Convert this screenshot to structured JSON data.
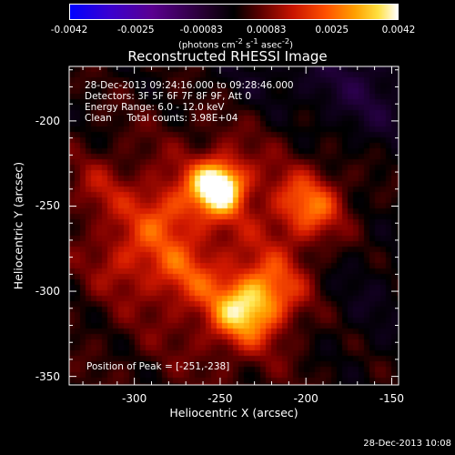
{
  "colorbar": {
    "ticks": [
      "-0.0042",
      "-0.0025",
      "-0.00083",
      "0.00083",
      "0.0025",
      "0.0042"
    ],
    "unit_html": "(photons cm<sup>-2</sup> s<sup>-1</sup> asec<sup>-2</sup>)"
  },
  "chart_data": {
    "type": "heatmap",
    "title": "Reconstructed RHESSI Image",
    "xlabel": "Heliocentric X (arcsec)",
    "ylabel": "Heliocentric Y (arcsec)",
    "xlim": [
      -338,
      -146
    ],
    "ylim": [
      -355,
      -168
    ],
    "xticks": [
      "-300",
      "-250",
      "-200",
      "-150"
    ],
    "yticks": [
      "-200",
      "-250",
      "-300",
      "-350"
    ],
    "color_range": [
      -0.0042,
      0.0042
    ],
    "sources": [
      {
        "x": -251,
        "y": -238,
        "peak": 0.0042
      },
      {
        "x": -198,
        "y": -250,
        "peak": 0.0021
      },
      {
        "x": -238,
        "y": -313,
        "peak": 0.0024
      },
      {
        "x": -220,
        "y": -300,
        "peak": 0.0017
      },
      {
        "x": -282,
        "y": -254,
        "peak": 0.0014
      },
      {
        "x": -272,
        "y": -290,
        "peak": 0.0012
      },
      {
        "x": -305,
        "y": -280,
        "peak": 0.0011
      },
      {
        "x": -320,
        "y": -240,
        "peak": 0.0009
      }
    ],
    "annotation": {
      "lines": [
        "28-Dec-2013 09:24:16.000 to 09:28:46.000",
        "Detectors: 3F 5F 6F 7F 8F 9F, Att 0",
        "Energy Range: 6.0 - 12.0 keV",
        "Clean     Total counts: 3.98E+04"
      ],
      "peak": "Position of Peak = [-251,-238]"
    }
  },
  "timestamp": "28-Dec-2013 10:08"
}
